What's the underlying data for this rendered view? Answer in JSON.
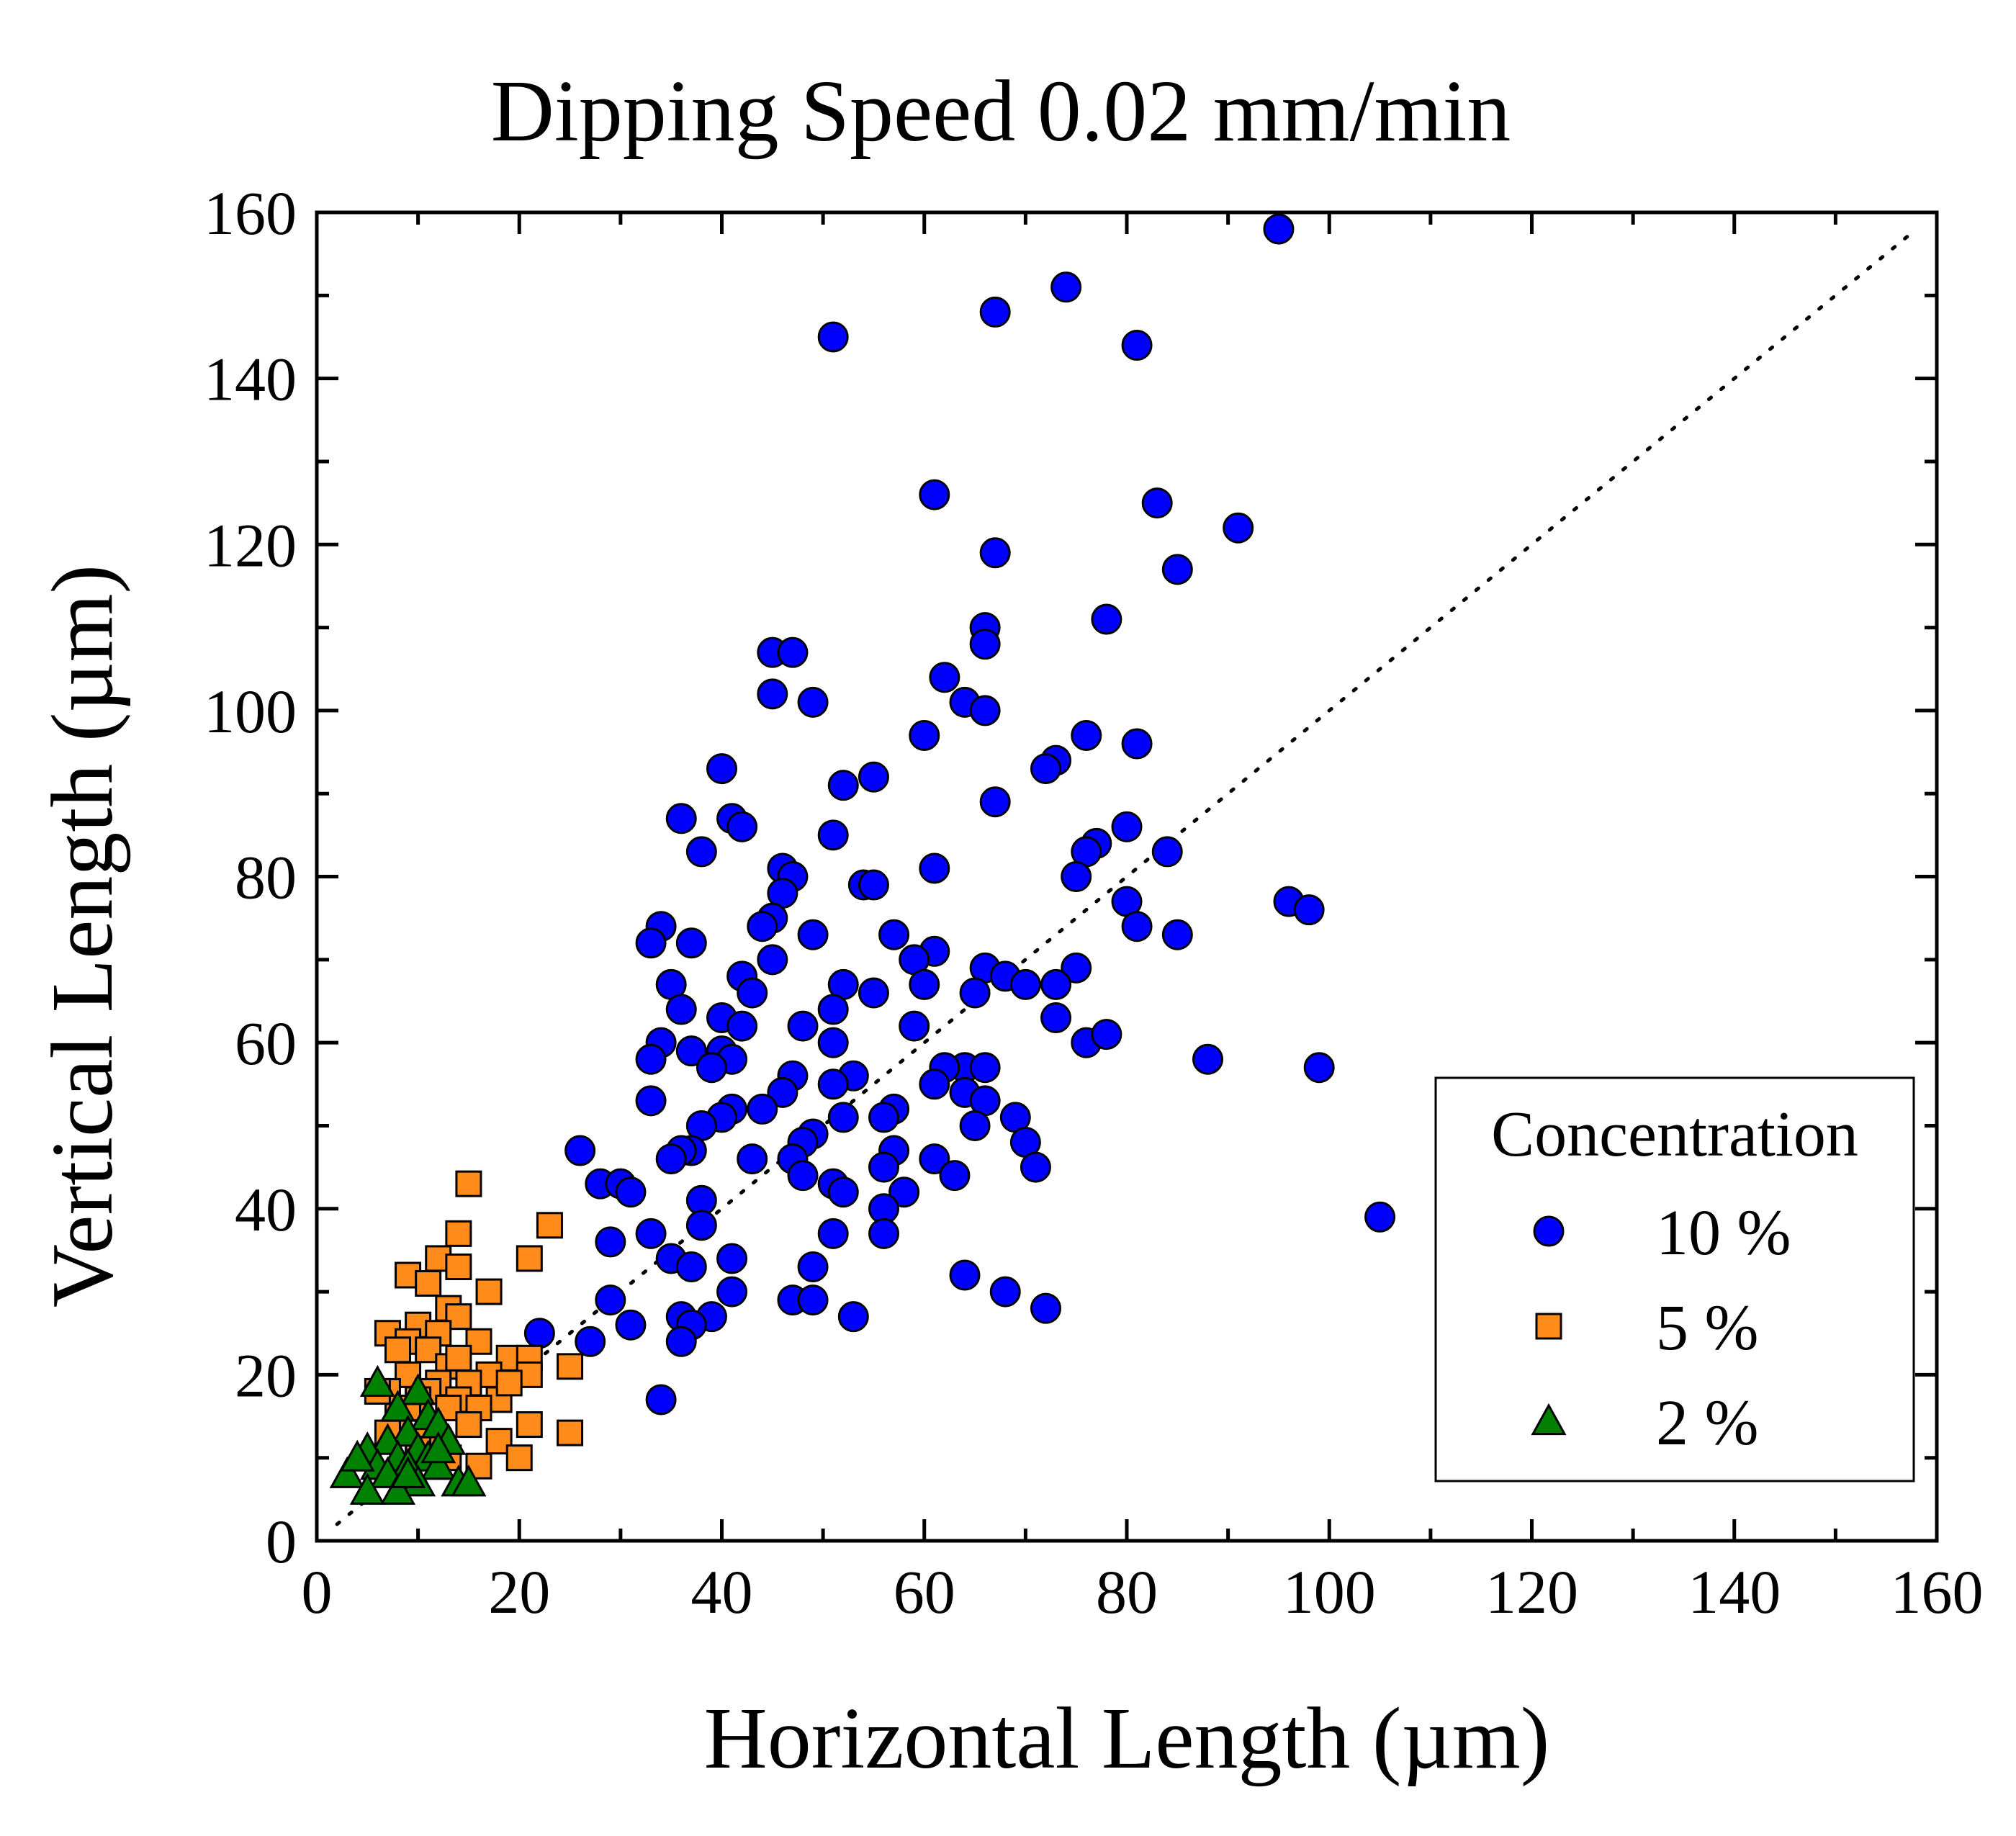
{
  "chart_data": {
    "type": "scatter",
    "title": "Dipping Speed 0.02 mm/min",
    "xlabel": "Horizontal Length (µm)",
    "ylabel": "Vertical Length (µm)",
    "xlim": [
      0,
      160
    ],
    "ylim": [
      0,
      160
    ],
    "xticks": [
      "0",
      "20",
      "40",
      "60",
      "80",
      "100",
      "120",
      "140",
      "160"
    ],
    "yticks": [
      "0",
      "20",
      "40",
      "60",
      "80",
      "100",
      "120",
      "140",
      "160"
    ],
    "reference_line": {
      "style": "dotted",
      "x": [
        2,
        158
      ],
      "y": [
        2,
        158
      ]
    },
    "legend": {
      "title": "Concentration",
      "placement": "lower-right"
    },
    "series": [
      {
        "name": "10 %",
        "marker": "circle",
        "color": "#0000ff",
        "points": [
          [
            95,
            158
          ],
          [
            74,
            151
          ],
          [
            67,
            148
          ],
          [
            51,
            145
          ],
          [
            81,
            144
          ],
          [
            61,
            126
          ],
          [
            83,
            125
          ],
          [
            91,
            122
          ],
          [
            67,
            119
          ],
          [
            85,
            117
          ],
          [
            78,
            111
          ],
          [
            66,
            110
          ],
          [
            66,
            108
          ],
          [
            45,
            107
          ],
          [
            47,
            107
          ],
          [
            62,
            104
          ],
          [
            45,
            102
          ],
          [
            64,
            101
          ],
          [
            49,
            101
          ],
          [
            66,
            100
          ],
          [
            60,
            97
          ],
          [
            76,
            97
          ],
          [
            81,
            96
          ],
          [
            73,
            94
          ],
          [
            72,
            93
          ],
          [
            40,
            93
          ],
          [
            55,
            92
          ],
          [
            52,
            91
          ],
          [
            67,
            89
          ],
          [
            36,
            87
          ],
          [
            41,
            87
          ],
          [
            42,
            86
          ],
          [
            80,
            86
          ],
          [
            51,
            85
          ],
          [
            84,
            83
          ],
          [
            77,
            84
          ],
          [
            76,
            83
          ],
          [
            38,
            83
          ],
          [
            46,
            81
          ],
          [
            61,
            81
          ],
          [
            47,
            80
          ],
          [
            75,
            80
          ],
          [
            54,
            79
          ],
          [
            55,
            79
          ],
          [
            46,
            78
          ],
          [
            80,
            77
          ],
          [
            96,
            77
          ],
          [
            98,
            76
          ],
          [
            45,
            75
          ],
          [
            81,
            74
          ],
          [
            34,
            74
          ],
          [
            44,
            74
          ],
          [
            85,
            73
          ],
          [
            57,
            73
          ],
          [
            49,
            73
          ],
          [
            37,
            72
          ],
          [
            33,
            72
          ],
          [
            61,
            71
          ],
          [
            59,
            70
          ],
          [
            45,
            70
          ],
          [
            75,
            69
          ],
          [
            66,
            69
          ],
          [
            42,
            68
          ],
          [
            68,
            68
          ],
          [
            70,
            67
          ],
          [
            73,
            67
          ],
          [
            52,
            67
          ],
          [
            35,
            67
          ],
          [
            60,
            67
          ],
          [
            43,
            66
          ],
          [
            55,
            66
          ],
          [
            65,
            66
          ],
          [
            36,
            64
          ],
          [
            51,
            64
          ],
          [
            40,
            63
          ],
          [
            73,
            63
          ],
          [
            59,
            62
          ],
          [
            42,
            62
          ],
          [
            48,
            62
          ],
          [
            76,
            60
          ],
          [
            78,
            61
          ],
          [
            34,
            60
          ],
          [
            51,
            60
          ],
          [
            37,
            59
          ],
          [
            40,
            59
          ],
          [
            41,
            58
          ],
          [
            88,
            58
          ],
          [
            33,
            58
          ],
          [
            39,
            57
          ],
          [
            99,
            57
          ],
          [
            64,
            57
          ],
          [
            62,
            57
          ],
          [
            66,
            57
          ],
          [
            53,
            56
          ],
          [
            61,
            55
          ],
          [
            47,
            56
          ],
          [
            51,
            55
          ],
          [
            46,
            54
          ],
          [
            64,
            54
          ],
          [
            33,
            53
          ],
          [
            66,
            53
          ],
          [
            57,
            52
          ],
          [
            41,
            52
          ],
          [
            44,
            52
          ],
          [
            52,
            51
          ],
          [
            40,
            51
          ],
          [
            56,
            51
          ],
          [
            69,
            51
          ],
          [
            38,
            50
          ],
          [
            65,
            50
          ],
          [
            49,
            49
          ],
          [
            70,
            48
          ],
          [
            57,
            47
          ],
          [
            48,
            48
          ],
          [
            37,
            47
          ],
          [
            36,
            47
          ],
          [
            47,
            46
          ],
          [
            61,
            46
          ],
          [
            35,
            46
          ],
          [
            43,
            46
          ],
          [
            71,
            45
          ],
          [
            56,
            45
          ],
          [
            63,
            44
          ],
          [
            48,
            44
          ],
          [
            26,
            47
          ],
          [
            51,
            43
          ],
          [
            28,
            43
          ],
          [
            30,
            43
          ],
          [
            52,
            42
          ],
          [
            58,
            42
          ],
          [
            31,
            42
          ],
          [
            38,
            41
          ],
          [
            56,
            40
          ],
          [
            105,
            39
          ],
          [
            51,
            37
          ],
          [
            56,
            37
          ],
          [
            33,
            37
          ],
          [
            38,
            38
          ],
          [
            29,
            36
          ],
          [
            35,
            34
          ],
          [
            41,
            34
          ],
          [
            49,
            33
          ],
          [
            37,
            33
          ],
          [
            64,
            32
          ],
          [
            41,
            30
          ],
          [
            68,
            30
          ],
          [
            47,
            29
          ],
          [
            49,
            29
          ],
          [
            29,
            29
          ],
          [
            36,
            27
          ],
          [
            72,
            28
          ],
          [
            39,
            27
          ],
          [
            53,
            27
          ],
          [
            31,
            26
          ],
          [
            37,
            26
          ],
          [
            22,
            25
          ],
          [
            27,
            24
          ],
          [
            36,
            24
          ],
          [
            34,
            17
          ]
        ]
      },
      {
        "name": "5 %",
        "marker": "square",
        "color": "#ff8c1a",
        "points": [
          [
            15,
            43
          ],
          [
            23,
            38
          ],
          [
            14,
            37
          ],
          [
            21,
            34
          ],
          [
            12,
            34
          ],
          [
            14,
            33
          ],
          [
            9,
            32
          ],
          [
            11,
            31
          ],
          [
            17,
            30
          ],
          [
            13,
            28
          ],
          [
            14,
            27
          ],
          [
            10,
            26
          ],
          [
            7,
            25
          ],
          [
            12,
            25
          ],
          [
            16,
            24
          ],
          [
            9,
            24
          ],
          [
            11,
            23
          ],
          [
            8,
            23
          ],
          [
            19,
            22
          ],
          [
            21,
            22
          ],
          [
            13,
            21
          ],
          [
            25,
            21
          ],
          [
            9,
            20
          ],
          [
            17,
            20
          ],
          [
            12,
            19
          ],
          [
            21,
            20
          ],
          [
            15,
            19
          ],
          [
            7,
            18
          ],
          [
            11,
            18
          ],
          [
            6,
            18
          ],
          [
            14,
            17
          ],
          [
            10,
            17
          ],
          [
            18,
            17
          ],
          [
            13,
            16
          ],
          [
            16,
            16
          ],
          [
            8,
            15
          ],
          [
            11,
            14
          ],
          [
            21,
            14
          ],
          [
            15,
            14
          ],
          [
            25,
            13
          ],
          [
            12,
            12
          ],
          [
            18,
            12
          ],
          [
            10,
            11
          ],
          [
            20,
            10
          ],
          [
            13,
            10
          ],
          [
            16,
            9
          ],
          [
            7,
            13
          ],
          [
            9,
            16
          ],
          [
            19,
            19
          ],
          [
            14,
            22
          ]
        ]
      },
      {
        "name": "2 %",
        "marker": "triangle",
        "color": "#008000",
        "points": [
          [
            6,
            19
          ],
          [
            10,
            18
          ],
          [
            8,
            16
          ],
          [
            11,
            15
          ],
          [
            9,
            13
          ],
          [
            12,
            14
          ],
          [
            7,
            12
          ],
          [
            10,
            11
          ],
          [
            13,
            12
          ],
          [
            5,
            11
          ],
          [
            8,
            10
          ],
          [
            11,
            10
          ],
          [
            6,
            9
          ],
          [
            9,
            9
          ],
          [
            12,
            9
          ],
          [
            3,
            8
          ],
          [
            7,
            8
          ],
          [
            10,
            7
          ],
          [
            14,
            7
          ],
          [
            5,
            6
          ],
          [
            8,
            6
          ],
          [
            15,
            7
          ],
          [
            4,
            10
          ],
          [
            12,
            11
          ],
          [
            9,
            8
          ]
        ]
      }
    ]
  }
}
